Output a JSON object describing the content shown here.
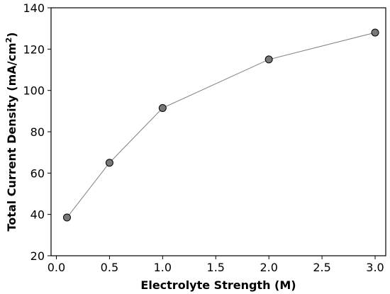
{
  "chart_data": {
    "type": "line",
    "title": "",
    "xlabel": "Electrolyte Strength (M)",
    "ylabel_main": "Total Current Density (mA/cm",
    "ylabel_sup": "2",
    "ylabel_end": ")",
    "xlim": [
      -0.05,
      3.1
    ],
    "ylim": [
      20,
      140
    ],
    "xticks": [
      "0.0",
      "0.5",
      "1.0",
      "1.5",
      "2.0",
      "2.5",
      "3.0"
    ],
    "yticks": [
      "20",
      "40",
      "60",
      "80",
      "100",
      "120",
      "140"
    ],
    "grid": false,
    "legend": "none",
    "series": [
      {
        "x": [
          0.1,
          0.5,
          1.0,
          2.0,
          3.0
        ],
        "y": [
          38.5,
          65,
          91.5,
          115,
          128
        ],
        "line_color": "#808080",
        "marker_color": "#777777",
        "marker_edge": "#000000"
      }
    ]
  }
}
